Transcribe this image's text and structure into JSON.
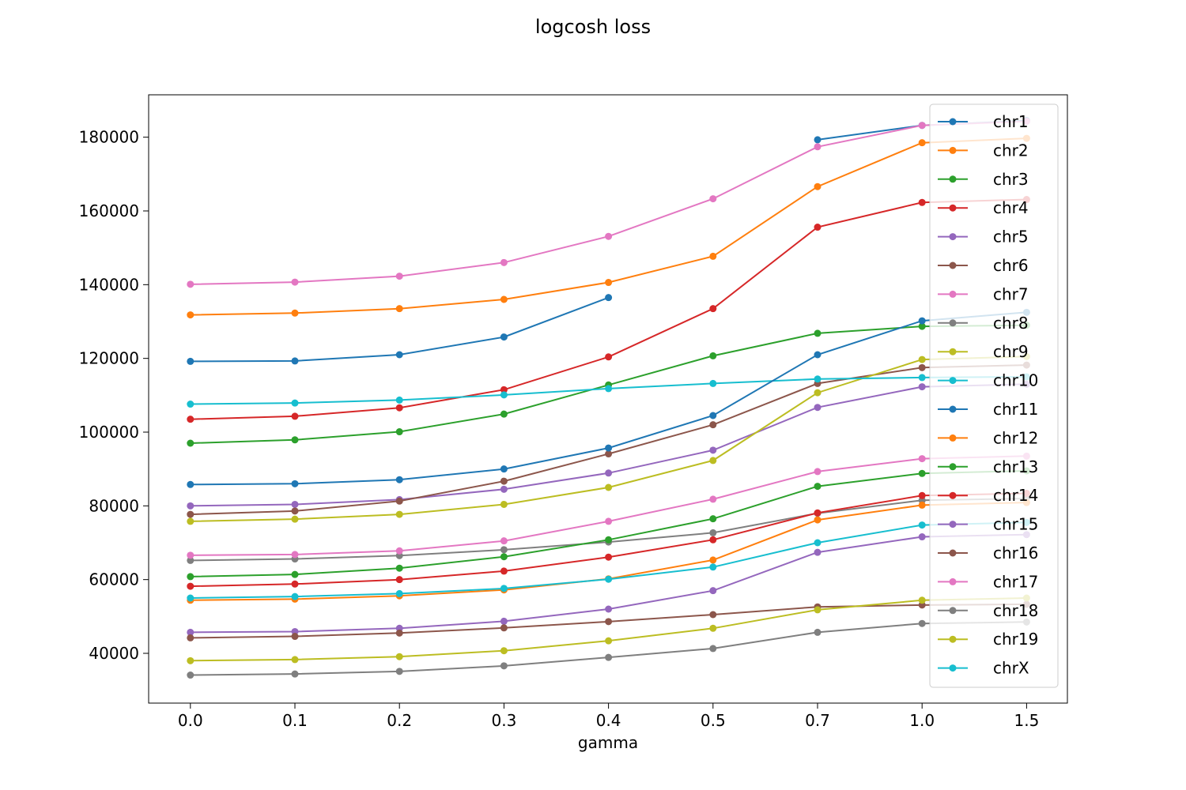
{
  "chart_data": {
    "type": "line",
    "title": "logcosh loss",
    "xlabel": "gamma",
    "ylabel": "",
    "categories": [
      "0.0",
      "0.1",
      "0.2",
      "0.3",
      "0.4",
      "0.5",
      "0.7",
      "1.0",
      "1.5"
    ],
    "ylim": [
      26500,
      191500
    ],
    "yticks": [
      40000,
      60000,
      80000,
      100000,
      120000,
      140000,
      160000,
      180000
    ],
    "ytick_labels": [
      "40000",
      "60000",
      "80000",
      "100000",
      "120000",
      "140000",
      "160000",
      "180000"
    ],
    "grid": false,
    "legend_position": "top-right",
    "series": [
      {
        "name": "chr1",
        "color": "#1f77b4",
        "values": [
          119200,
          119300,
          121000,
          125800,
          136500,
          null,
          179300,
          183200,
          184500
        ]
      },
      {
        "name": "chr2",
        "color": "#ff7f0e",
        "values": [
          131800,
          132300,
          133500,
          136000,
          140600,
          147700,
          166600,
          178500,
          179700
        ]
      },
      {
        "name": "chr3",
        "color": "#2ca02c",
        "values": [
          97000,
          97900,
          100100,
          104900,
          112800,
          120700,
          126800,
          128700,
          129000
        ]
      },
      {
        "name": "chr4",
        "color": "#d62728",
        "values": [
          103500,
          104300,
          106600,
          111500,
          120400,
          133500,
          155600,
          162300,
          163100
        ]
      },
      {
        "name": "chr5",
        "color": "#9467bd",
        "values": [
          80000,
          80400,
          81700,
          84500,
          88900,
          95100,
          106700,
          112300,
          113000
        ]
      },
      {
        "name": "chr6",
        "color": "#8c564b",
        "values": [
          77700,
          78600,
          81300,
          86700,
          94100,
          102000,
          113200,
          117500,
          118200
        ]
      },
      {
        "name": "chr7",
        "color": "#e377c2",
        "values": [
          140100,
          140700,
          142300,
          146000,
          153100,
          163300,
          177400,
          183200,
          184300
        ]
      },
      {
        "name": "chr8",
        "color": "#7f7f7f",
        "values": [
          65200,
          65600,
          66500,
          68100,
          70200,
          72700,
          78000,
          81500,
          82000
        ]
      },
      {
        "name": "chr9",
        "color": "#bcbd22",
        "values": [
          75800,
          76400,
          77700,
          80400,
          85000,
          92300,
          110700,
          119700,
          120500
        ]
      },
      {
        "name": "chr10",
        "color": "#17becf",
        "values": [
          107600,
          107900,
          108700,
          110100,
          111800,
          113200,
          114400,
          114800,
          115000
        ]
      },
      {
        "name": "chr11",
        "color": "#1f77b4",
        "values": [
          85800,
          86000,
          87100,
          90000,
          95700,
          104500,
          121000,
          130200,
          132500
        ]
      },
      {
        "name": "chr12",
        "color": "#ff7f0e",
        "values": [
          54400,
          54700,
          55600,
          57200,
          60200,
          65300,
          76200,
          80200,
          80900
        ]
      },
      {
        "name": "chr13",
        "color": "#2ca02c",
        "values": [
          60800,
          61400,
          63100,
          66200,
          70800,
          76500,
          85300,
          88800,
          89500
        ]
      },
      {
        "name": "chr14",
        "color": "#d62728",
        "values": [
          58200,
          58800,
          60000,
          62300,
          66100,
          70800,
          78100,
          82800,
          83400
        ]
      },
      {
        "name": "chr15",
        "color": "#9467bd",
        "values": [
          45700,
          45900,
          46800,
          48700,
          52000,
          57000,
          67400,
          71600,
          72200
        ]
      },
      {
        "name": "chr16",
        "color": "#8c564b",
        "values": [
          44200,
          44600,
          45500,
          46900,
          48600,
          50500,
          52600,
          53100,
          53300
        ]
      },
      {
        "name": "chr17",
        "color": "#e377c2",
        "values": [
          66600,
          66800,
          67800,
          70500,
          75800,
          81800,
          89300,
          92800,
          93500
        ]
      },
      {
        "name": "chr18",
        "color": "#7f7f7f",
        "values": [
          34100,
          34400,
          35100,
          36600,
          38900,
          41300,
          45700,
          48100,
          48500
        ]
      },
      {
        "name": "chr19",
        "color": "#bcbd22",
        "values": [
          38000,
          38300,
          39100,
          40700,
          43400,
          46800,
          51800,
          54400,
          55000
        ]
      },
      {
        "name": "chrX",
        "color": "#17becf",
        "values": [
          55000,
          55400,
          56200,
          57600,
          60100,
          63400,
          70000,
          74800,
          75500
        ]
      }
    ]
  }
}
